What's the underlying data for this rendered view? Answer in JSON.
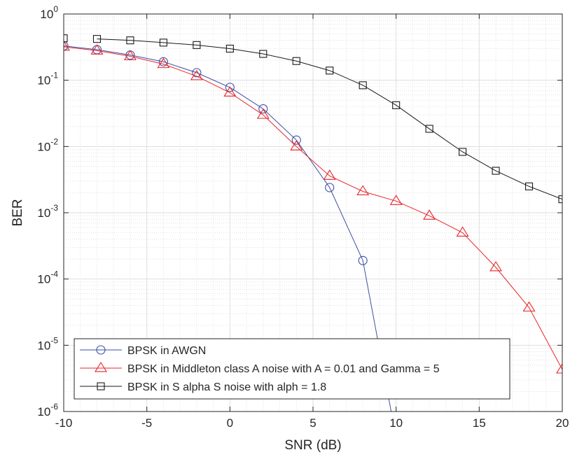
{
  "chart_data": {
    "type": "line",
    "title": "",
    "xlabel": "SNR (dB)",
    "ylabel": "BER",
    "xlim": [
      -10,
      20
    ],
    "ylim": [
      1e-06,
      1
    ],
    "yscale": "log",
    "grid": true,
    "minor_grid": true,
    "legend_position": "bottom-left",
    "x_ticks": [
      -10,
      -5,
      0,
      5,
      10,
      15,
      20
    ],
    "x_tick_labels": [
      "-10",
      "-5",
      "0",
      "5",
      "10",
      "15",
      "20"
    ],
    "y_ticks": [
      {
        "value": 1e-06,
        "base": "10",
        "exp": "-6"
      },
      {
        "value": 1e-05,
        "base": "10",
        "exp": "-5"
      },
      {
        "value": 0.0001,
        "base": "10",
        "exp": "-4"
      },
      {
        "value": 0.001,
        "base": "10",
        "exp": "-3"
      },
      {
        "value": 0.01,
        "base": "10",
        "exp": "-2"
      },
      {
        "value": 0.1,
        "base": "10",
        "exp": "-1"
      },
      {
        "value": 1,
        "base": "10",
        "exp": "0"
      }
    ],
    "series": [
      {
        "name": "BPSK in AWGN",
        "color": "#3b4fa6",
        "marker": "circle",
        "x": [
          -10,
          -8,
          -6,
          -4,
          -2,
          0,
          2,
          4,
          6,
          8,
          10
        ],
        "y": [
          0.33,
          0.29,
          0.24,
          0.19,
          0.13,
          0.078,
          0.037,
          0.0125,
          0.0024,
          0.00019,
          4e-07
        ],
        "marker_indices": [
          0,
          1,
          2,
          3,
          4,
          5,
          6,
          7,
          8,
          9
        ]
      },
      {
        "name": "BPSK in Middleton class A noise with A = 0.01 and Gamma = 5",
        "color": "#e8262a",
        "marker": "triangle",
        "x": [
          -10,
          -8,
          -6,
          -4,
          -2,
          0,
          2,
          4,
          6,
          8,
          10,
          12,
          14,
          16,
          18,
          20
        ],
        "y": [
          0.32,
          0.28,
          0.23,
          0.175,
          0.115,
          0.065,
          0.03,
          0.01,
          0.0036,
          0.0021,
          0.0015,
          0.0009,
          0.0005,
          0.00015,
          3.7e-05,
          4.3e-06
        ]
      },
      {
        "name": "BPSK in S alpha S noise with alph = 1.8",
        "color": "#1a1a1a",
        "marker": "square",
        "x": [
          -10,
          -8,
          -6,
          -4,
          -2,
          0,
          2,
          4,
          6,
          8,
          10,
          12,
          14,
          16,
          18,
          20
        ],
        "y": [
          0.43,
          0.42,
          0.4,
          0.37,
          0.34,
          0.3,
          0.25,
          0.195,
          0.14,
          0.084,
          0.042,
          0.0185,
          0.0083,
          0.0043,
          0.0025,
          0.0016
        ],
        "marker_only_indices": [
          0
        ]
      }
    ]
  }
}
